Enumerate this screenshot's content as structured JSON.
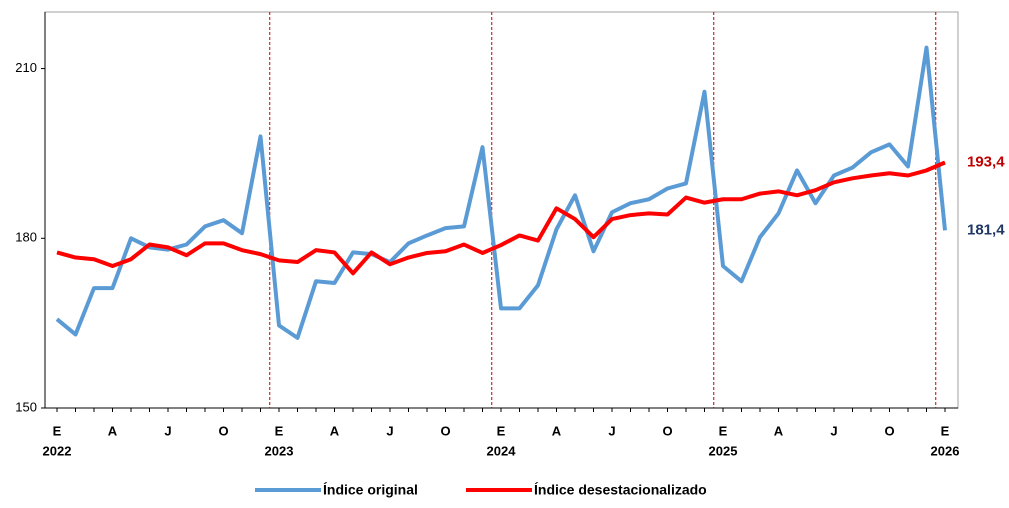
{
  "chart_data": {
    "type": "line",
    "categories": [
      "E",
      null,
      null,
      "A",
      null,
      null,
      "J",
      null,
      null,
      "O",
      null,
      null,
      "E",
      null,
      null,
      "A",
      null,
      null,
      "J",
      null,
      null,
      "O",
      null,
      null,
      "E",
      null,
      null,
      "A",
      null,
      null,
      "J",
      null,
      null,
      "O",
      null,
      null,
      "E",
      null,
      null,
      "A",
      null,
      null,
      "J",
      null,
      null,
      "O",
      null,
      null,
      "E"
    ],
    "years": [
      "2022",
      null,
      null,
      null,
      null,
      null,
      null,
      null,
      null,
      null,
      null,
      null,
      "2023",
      null,
      null,
      null,
      null,
      null,
      null,
      null,
      null,
      null,
      null,
      null,
      "2024",
      null,
      null,
      null,
      null,
      null,
      null,
      null,
      null,
      null,
      null,
      null,
      "2025",
      null,
      null,
      null,
      null,
      null,
      null,
      null,
      null,
      null,
      null,
      null,
      "2026"
    ],
    "series": [
      {
        "name": "Índice original",
        "color": "#5b9bd5",
        "label_color": "#1f3864",
        "values": [
          165.7,
          163,
          171.2,
          171.2,
          180,
          178.4,
          178,
          178.9,
          182.1,
          183.2,
          180.9,
          198,
          164.6,
          162.4,
          172.4,
          172.1,
          177.5,
          177.2,
          175.8,
          179.1,
          180.5,
          181.8,
          182.1,
          196.1,
          167.6,
          167.6,
          171.7,
          181.6,
          187.6,
          177.7,
          184.6,
          186.2,
          186.9,
          188.8,
          189.7,
          205.9,
          175.1,
          172.4,
          180.2,
          184.4,
          192,
          186.2,
          191.1,
          192.5,
          195.2,
          196.6,
          192.7,
          213.7,
          181.4
        ],
        "value_labels": [
          null,
          null,
          null,
          null,
          null,
          null,
          null,
          null,
          null,
          null,
          null,
          null,
          null,
          null,
          null,
          null,
          null,
          null,
          null,
          null,
          null,
          null,
          null,
          null,
          null,
          null,
          null,
          null,
          null,
          null,
          null,
          null,
          null,
          null,
          null,
          null,
          null,
          null,
          null,
          null,
          null,
          null,
          null,
          null,
          null,
          null,
          null,
          null,
          "181,4"
        ]
      },
      {
        "name": "Índice desestacionalizado",
        "color": "#ff0000",
        "label_color": "#c00000",
        "values": [
          177.5,
          176.6,
          176.3,
          175.1,
          176.3,
          178.9,
          178.4,
          177,
          179.1,
          179.1,
          177.9,
          177.2,
          176.1,
          175.8,
          177.9,
          177.5,
          173.8,
          177.5,
          175.4,
          176.6,
          177.4,
          177.7,
          178.9,
          177.4,
          178.8,
          180.5,
          179.6,
          185.3,
          183.4,
          180.2,
          183.4,
          184.1,
          184.4,
          184.2,
          187.2,
          186.3,
          186.9,
          186.9,
          187.9,
          188.3,
          187.6,
          188.5,
          189.9,
          190.6,
          191.1,
          191.5,
          191.1,
          192,
          193.4
        ],
        "value_labels": [
          null,
          null,
          null,
          null,
          null,
          null,
          null,
          null,
          null,
          null,
          null,
          null,
          null,
          null,
          null,
          null,
          null,
          null,
          null,
          null,
          null,
          null,
          null,
          null,
          null,
          null,
          null,
          null,
          null,
          null,
          null,
          null,
          null,
          null,
          null,
          null,
          null,
          null,
          null,
          null,
          null,
          null,
          null,
          null,
          null,
          null,
          null,
          null,
          "193,4"
        ]
      }
    ],
    "ylim": [
      150,
      220
    ],
    "yticks": [
      150,
      180,
      210
    ]
  }
}
